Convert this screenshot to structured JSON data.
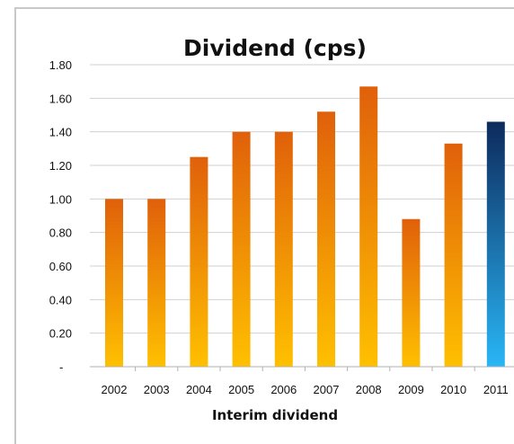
{
  "chart_data": {
    "type": "bar",
    "title": "Dividend (cps)",
    "xlabel": "Interim dividend",
    "ylabel": "",
    "ylim": [
      0,
      1.8
    ],
    "y_ticks": [
      "-",
      "0.20",
      "0.40",
      "0.60",
      "0.80",
      "1.00",
      "1.20",
      "1.40",
      "1.60",
      "1.80"
    ],
    "y_tick_values": [
      0,
      0.2,
      0.4,
      0.6,
      0.8,
      1.0,
      1.2,
      1.4,
      1.6,
      1.8
    ],
    "categories": [
      "2002",
      "2003",
      "2004",
      "2005",
      "2006",
      "2007",
      "2008",
      "2009",
      "2010",
      "2011"
    ],
    "values": [
      1.0,
      1.0,
      1.25,
      1.4,
      1.4,
      1.52,
      1.67,
      0.88,
      1.33,
      1.46
    ],
    "grid": true,
    "legend": "none",
    "colors": {
      "orange_top": "#e0600a",
      "orange_bottom": "#ffc000",
      "blue_top": "#0d2a5c",
      "blue_bottom": "#29b6f6",
      "grid": "#d0d0d0"
    },
    "highlight_category": "2011"
  }
}
